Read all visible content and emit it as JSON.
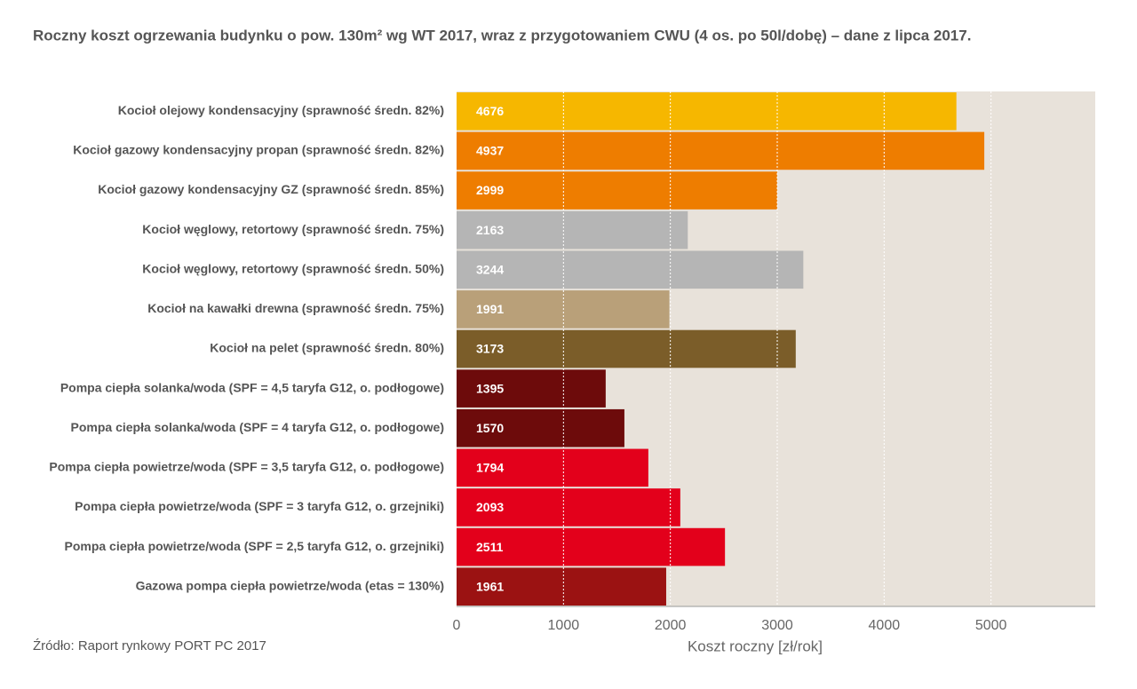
{
  "chart_data": {
    "type": "barh",
    "title": "Roczny koszt ogrzewania budynku o pow. 130m² wg WT 2017, wraz z przygotowaniem CWU (4 os. po 50l/dobę) – dane z lipca 2017.",
    "source": "Źródło: Raport rynkowy PORT PC 2017",
    "x_label": "Koszt roczny [zł/rok]",
    "categories": [
      "Kocioł olejowy kondensacyjny (sprawność średn. 82%)",
      "Kocioł gazowy kondensacyjny propan (sprawność średn. 82%)",
      "Kocioł gazowy kondensacyjny GZ (sprawność średn. 85%)",
      "Kocioł węglowy, retortowy (sprawność średn. 75%)",
      "Kocioł węglowy, retortowy (sprawność średn. 50%)",
      "Kocioł na kawałki drewna (sprawność średn. 75%)",
      "Kocioł na pelet (sprawność średn. 80%)",
      "Pompa ciepła solanka/woda (SPF = 4,5 taryfa G12, o. podłogowe)",
      "Pompa ciepła solanka/woda (SPF = 4 taryfa G12, o. podłogowe)",
      "Pompa ciepła powietrze/woda (SPF = 3,5 taryfa G12, o. podłogowe)",
      "Pompa ciepła powietrze/woda (SPF = 3 taryfa G12, o. grzejniki)",
      "Pompa ciepła powietrze/woda (SPF = 2,5 taryfa G12, o. grzejniki)",
      "Gazowa pompa ciepła powietrze/woda (etas = 130%)"
    ],
    "values": [
      4676,
      4937,
      2999,
      2163,
      3244,
      1991,
      3173,
      1395,
      1570,
      1794,
      2093,
      2511,
      1961
    ],
    "colors": [
      "#f6b700",
      "#ee7d00",
      "#ee7d00",
      "#b5b5b5",
      "#b5b5b5",
      "#b9a079",
      "#7b5d29",
      "#6d0b0b",
      "#6d0b0b",
      "#e3001b",
      "#e3001b",
      "#e3001b",
      "#9b1212"
    ],
    "xlim": [
      0,
      6000
    ],
    "xticks": [
      0,
      1000,
      2000,
      3000,
      4000,
      5000
    ],
    "grid": true
  }
}
